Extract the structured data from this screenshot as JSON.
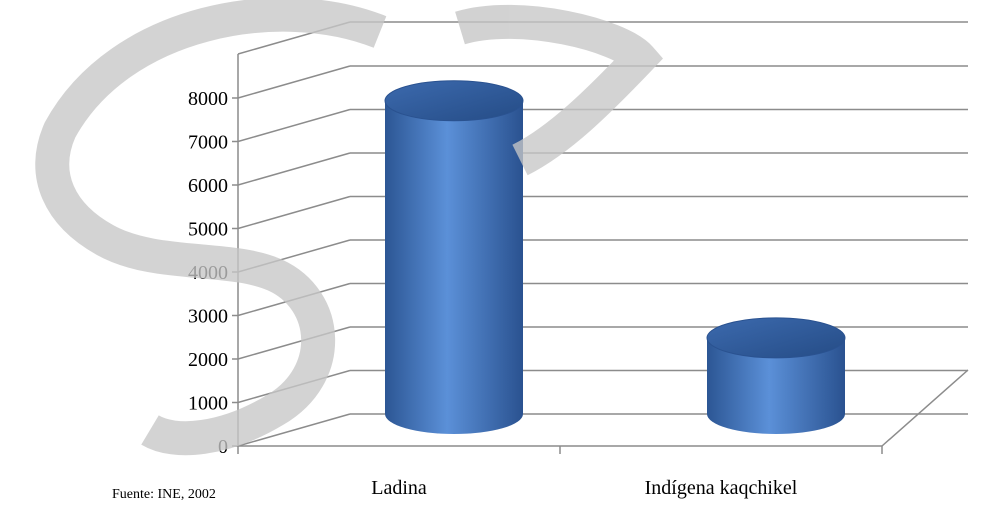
{
  "chart_data": {
    "type": "bar",
    "style": "3d-cylinder",
    "categories": [
      "Ladina",
      "Indígena kaqchikel"
    ],
    "values": [
      7200,
      1750
    ],
    "yticks": [
      0,
      1000,
      2000,
      3000,
      4000,
      5000,
      6000,
      7000,
      8000
    ],
    "ylim": [
      0,
      8000
    ],
    "grid": true,
    "legend": "none",
    "bar_color": "#4a7ec6"
  },
  "source_text": "Fuente: INE, 2002",
  "watermark_text": "CS"
}
